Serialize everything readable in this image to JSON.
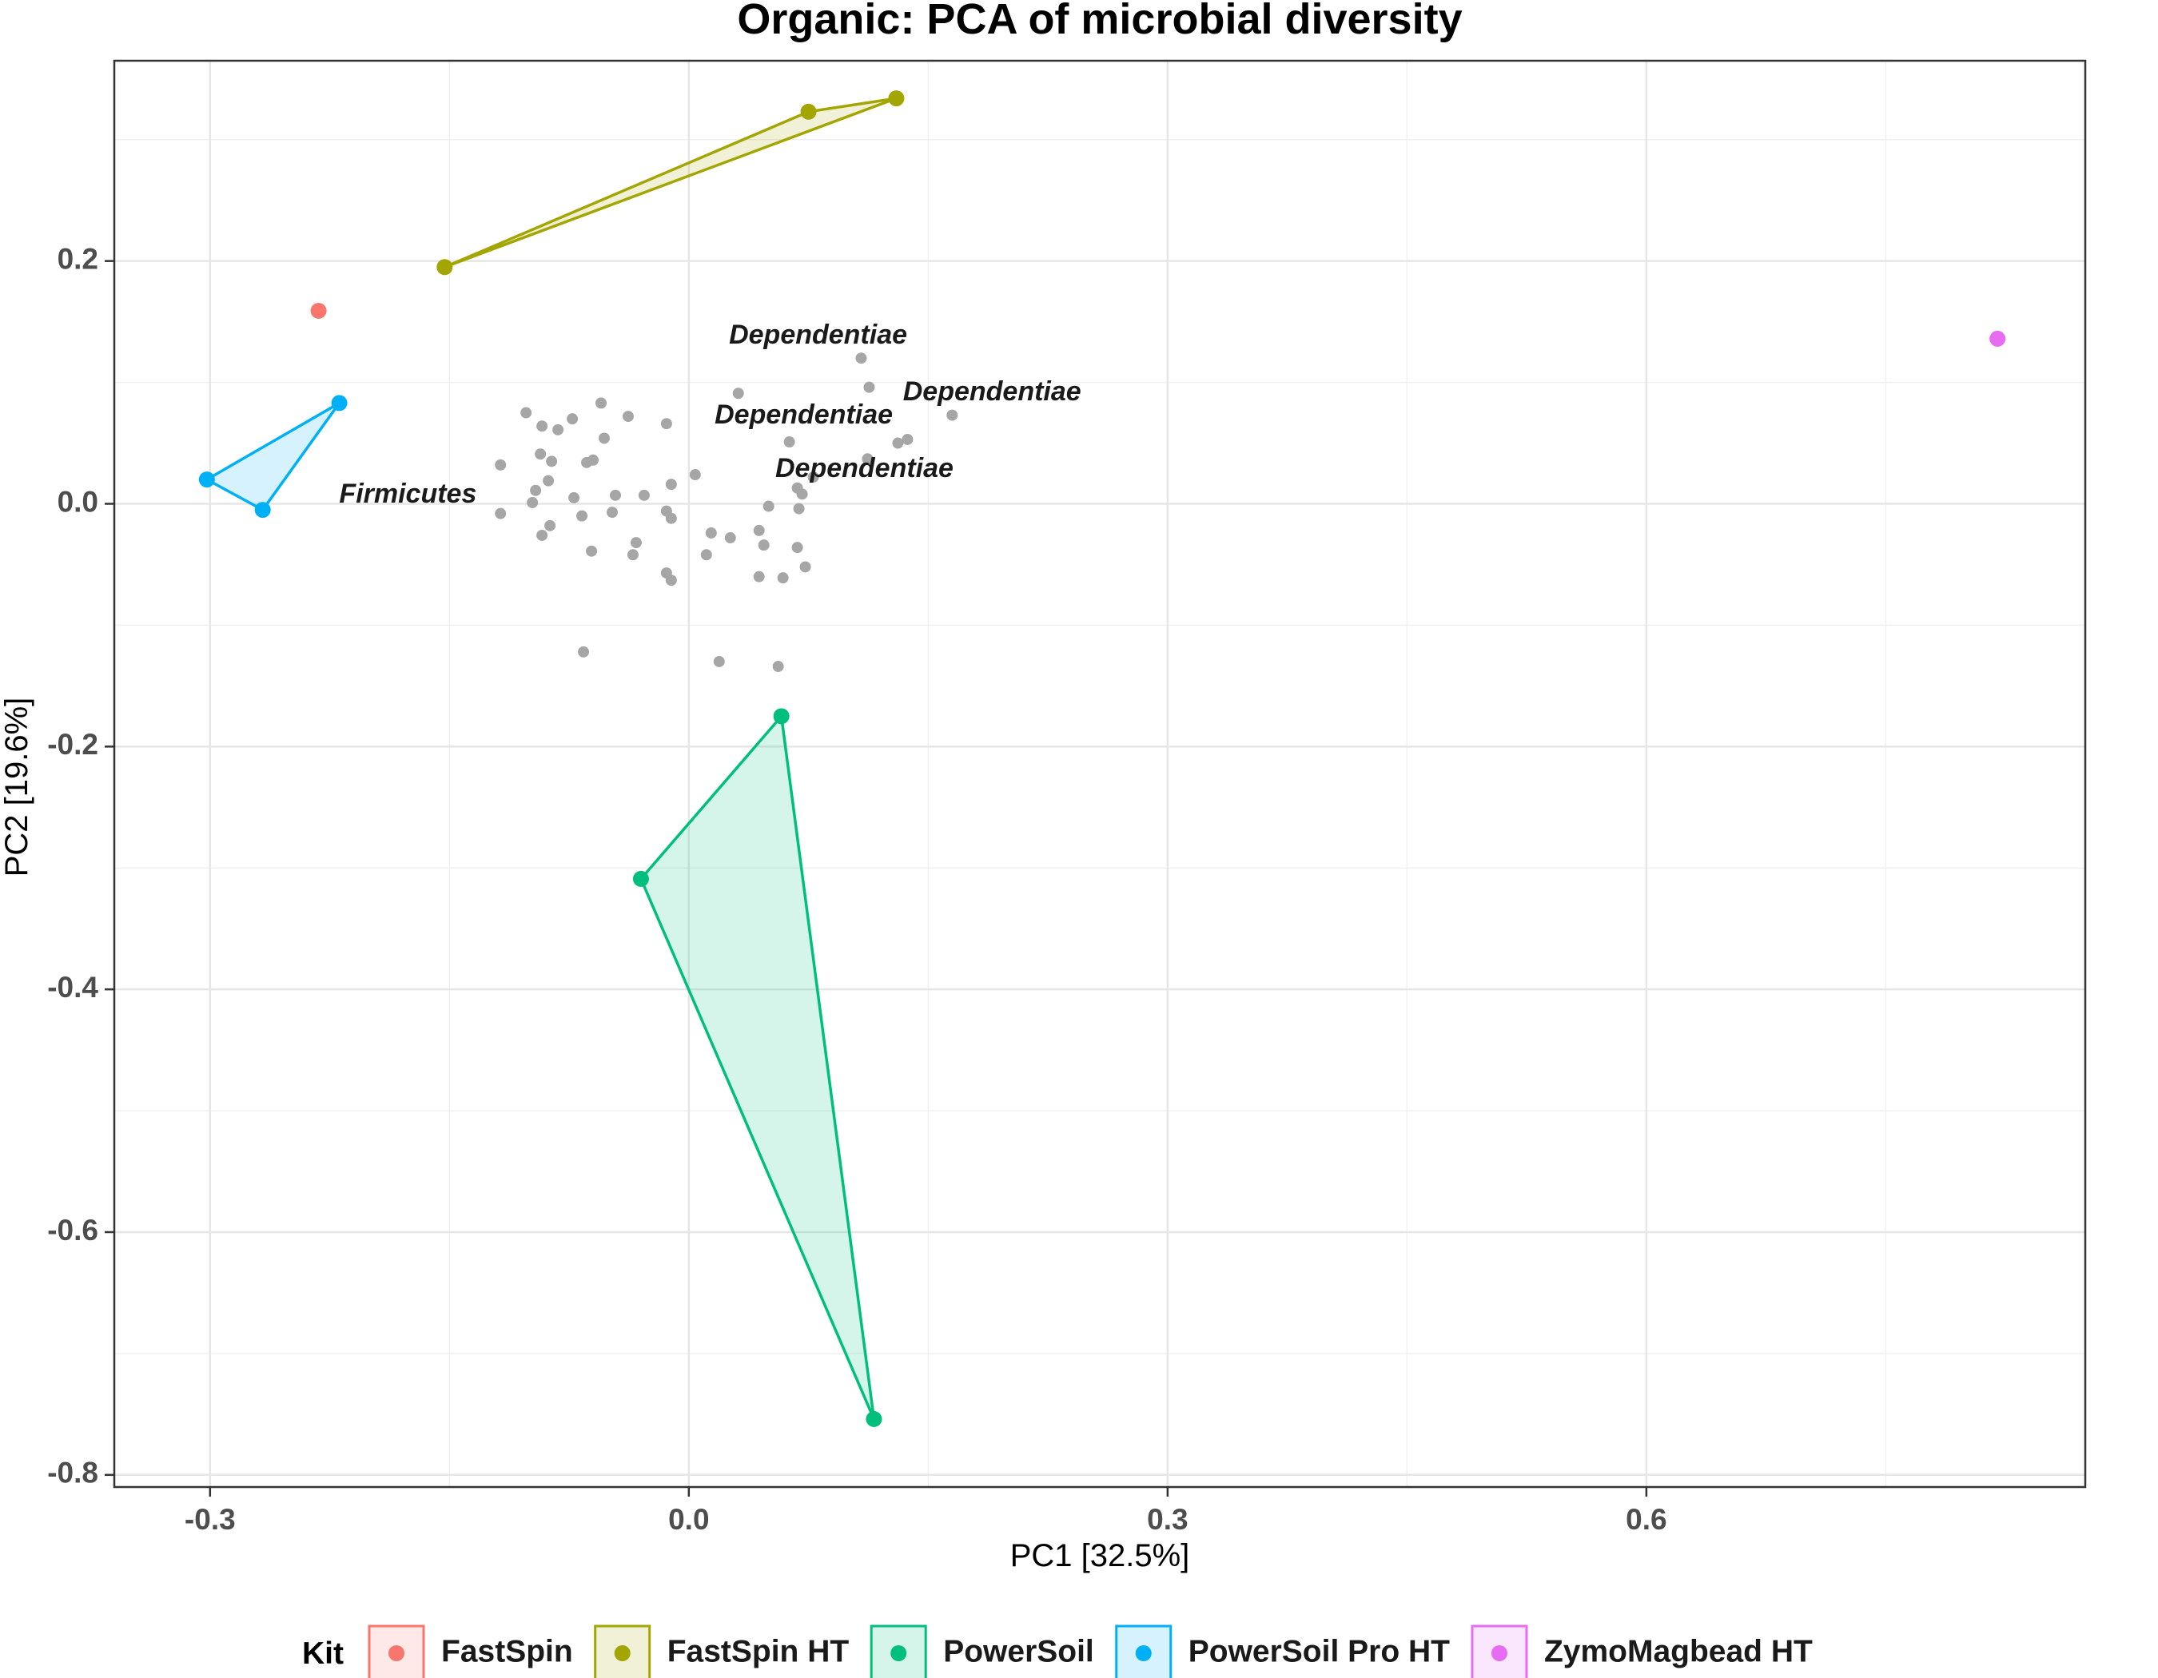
{
  "chart_data": {
    "type": "scatter",
    "title": "Organic: PCA of microbial diversity",
    "xlabel": "PC1 [32.5%]",
    "ylabel": "PC2 [19.6%]",
    "xlim": [
      -0.36,
      0.875
    ],
    "ylim": [
      -0.81,
      0.365
    ],
    "x_ticks": [
      -0.3,
      0.0,
      0.3,
      0.6
    ],
    "x_tick_labels": [
      "-0.3",
      "0.0",
      "0.3",
      "0.6"
    ],
    "y_ticks": [
      -0.8,
      -0.6,
      -0.4,
      -0.2,
      0.0,
      0.2
    ],
    "y_tick_labels": [
      "-0.8",
      "-0.6",
      "-0.4",
      "-0.2",
      "0.0",
      "0.2"
    ],
    "grid": true,
    "legend": {
      "title": "Kit",
      "position": "bottom"
    },
    "series": [
      {
        "name": "FastSpin",
        "color": "#F8766D",
        "points": [
          [
            -0.232,
            0.159
          ]
        ]
      },
      {
        "name": "FastSpin HT",
        "color": "#A3A500",
        "points": [
          [
            -0.153,
            0.195
          ],
          [
            0.075,
            0.323
          ],
          [
            0.13,
            0.334
          ]
        ]
      },
      {
        "name": "PowerSoil",
        "color": "#00BF7D",
        "points": [
          [
            0.058,
            -0.175
          ],
          [
            -0.03,
            -0.309
          ],
          [
            0.116,
            -0.754
          ]
        ]
      },
      {
        "name": "PowerSoil Pro HT",
        "color": "#00B0F6",
        "points": [
          [
            -0.302,
            0.02
          ],
          [
            -0.267,
            -0.005
          ],
          [
            -0.219,
            0.083
          ]
        ]
      },
      {
        "name": "ZymoMagbead HT",
        "color": "#E76BF3",
        "points": [
          [
            0.82,
            0.136
          ]
        ]
      }
    ],
    "loadings": {
      "color": "#a6a6a6",
      "points": [
        [
          0.108,
          0.12
        ],
        [
          0.113,
          0.096
        ],
        [
          0.031,
          0.091
        ],
        [
          0.165,
          0.073
        ],
        [
          0.137,
          0.053
        ],
        [
          0.131,
          0.05
        ],
        [
          0.063,
          0.051
        ],
        [
          0.112,
          0.037
        ],
        [
          0.078,
          0.022
        ],
        [
          0.068,
          0.013
        ],
        [
          0.071,
          0.008
        ],
        [
          0.069,
          -0.004
        ],
        [
          0.05,
          -0.002
        ],
        [
          -0.118,
          0.032
        ],
        [
          -0.06,
          0.036
        ],
        [
          -0.086,
          0.035
        ],
        [
          -0.088,
          0.019
        ],
        [
          -0.053,
          0.054
        ],
        [
          -0.073,
          0.07
        ],
        [
          -0.092,
          0.064
        ],
        [
          -0.082,
          0.061
        ],
        [
          -0.064,
          0.034
        ],
        [
          -0.093,
          0.041
        ],
        [
          -0.055,
          0.083
        ],
        [
          -0.038,
          0.072
        ],
        [
          -0.102,
          0.075
        ],
        [
          -0.014,
          0.066
        ],
        [
          -0.011,
          0.016
        ],
        [
          0.004,
          0.024
        ],
        [
          -0.028,
          0.007
        ],
        [
          -0.046,
          0.007
        ],
        [
          -0.072,
          0.005
        ],
        [
          -0.096,
          0.011
        ],
        [
          -0.098,
          0.001
        ],
        [
          -0.067,
          -0.01
        ],
        [
          -0.048,
          -0.007
        ],
        [
          -0.087,
          -0.018
        ],
        [
          -0.092,
          -0.026
        ],
        [
          -0.118,
          -0.008
        ],
        [
          -0.061,
          -0.039
        ],
        [
          -0.033,
          -0.032
        ],
        [
          -0.035,
          -0.042
        ],
        [
          -0.014,
          -0.006
        ],
        [
          -0.011,
          -0.012
        ],
        [
          -0.014,
          -0.057
        ],
        [
          -0.011,
          -0.063
        ],
        [
          0.014,
          -0.024
        ],
        [
          0.011,
          -0.042
        ],
        [
          0.026,
          -0.028
        ],
        [
          0.044,
          -0.022
        ],
        [
          0.047,
          -0.034
        ],
        [
          0.068,
          -0.036
        ],
        [
          0.073,
          -0.052
        ],
        [
          0.059,
          -0.061
        ],
        [
          0.044,
          -0.06
        ],
        [
          -0.066,
          -0.122
        ],
        [
          0.019,
          -0.13
        ],
        [
          0.056,
          -0.134
        ]
      ]
    },
    "annotations": [
      {
        "text": "Dependentiae",
        "x": 0.081,
        "y": 0.138
      },
      {
        "text": "Dependentiae",
        "x": 0.19,
        "y": 0.091
      },
      {
        "text": "Dependentiae",
        "x": 0.072,
        "y": 0.072
      },
      {
        "text": "Dependentiae",
        "x": 0.11,
        "y": 0.028
      },
      {
        "text": "Firmicutes",
        "x": -0.176,
        "y": 0.007
      }
    ]
  }
}
